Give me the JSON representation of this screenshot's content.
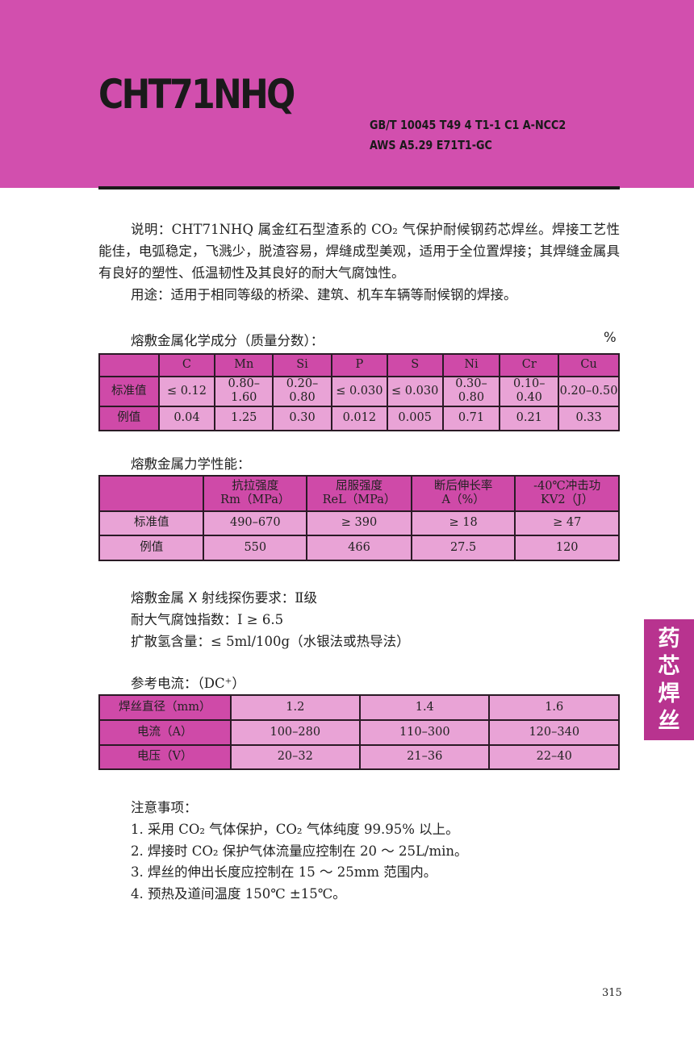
{
  "header": {
    "title": "CHT71NHQ",
    "standards": [
      "GB/T 10045 T49 4 T1-1 C1 A-NCC2",
      "AWS A5.29 E71T1-GC"
    ]
  },
  "description": {
    "label": "说明：",
    "text": "CHT71NHQ 属金红石型渣系的 CO₂ 气保护耐候钢药芯焊丝。焊接工艺性能佳，电弧稳定，飞溅少，脱渣容易，焊缝成型美观，适用于全位置焊接；其焊缝金属具有良好的塑性、低温韧性及其良好的耐大气腐蚀性。",
    "usage_label": "用途：",
    "usage": "适用于相同等级的桥梁、建筑、机车车辆等耐候钢的焊接。"
  },
  "chem": {
    "heading": "熔敷金属化学成分（质量分数）：",
    "unit": "%",
    "headers": [
      "",
      "C",
      "Mn",
      "Si",
      "P",
      "S",
      "Ni",
      "Cr",
      "Cu"
    ],
    "rows": [
      [
        "标准值",
        "≤ 0.12",
        "0.80–1.60",
        "0.20–0.80",
        "≤ 0.030",
        "≤ 0.030",
        "0.30–0.80",
        "0.10–0.40",
        "0.20–0.50"
      ],
      [
        "例值",
        "0.04",
        "1.25",
        "0.30",
        "0.012",
        "0.005",
        "0.71",
        "0.21",
        "0.33"
      ]
    ]
  },
  "mech": {
    "heading": "熔敷金属力学性能：",
    "headers": [
      [
        "",
        ""
      ],
      [
        "抗拉强度",
        "Rm（MPa）"
      ],
      [
        "屈服强度",
        "ReL（MPa）"
      ],
      [
        "断后伸长率",
        "A（%）"
      ],
      [
        "-40℃冲击功",
        "KV2（J）"
      ]
    ],
    "rows": [
      [
        "标准值",
        "490–670",
        "≥ 390",
        "≥ 18",
        "≥ 47"
      ],
      [
        "例值",
        "550",
        "466",
        "27.5",
        "120"
      ]
    ]
  },
  "req": [
    {
      "label": "熔敷金属 X 射线探伤要求：",
      "value": "Ⅱ级"
    },
    {
      "label": "耐大气腐蚀指数：",
      "value": "I ≥ 6.5"
    },
    {
      "label": "扩散氢含量：",
      "value": "≤ 5ml/100g（水银法或热导法）"
    }
  ],
  "current": {
    "heading": "参考电流：",
    "dc": "（DC⁺）",
    "rows": [
      [
        "焊丝直径（mm）",
        "1.2",
        "1.4",
        "1.6"
      ],
      [
        "电流（A）",
        "100–280",
        "110–300",
        "120–340"
      ],
      [
        "电压（V）",
        "20–32",
        "21–36",
        "22–40"
      ]
    ]
  },
  "notes": {
    "heading": "注意事项：",
    "items": [
      "1. 采用 CO₂ 气体保护，CO₂ 气体纯度 99.95% 以上。",
      "2. 焊接时 CO₂ 保护气体流量应控制在 20 ～ 25L/min。",
      "3. 焊丝的伸出长度应控制在 15 ～ 25mm 范围内。",
      "4. 预热及道间温度 150℃ ±15℃。"
    ]
  },
  "side_tab": "药芯焊丝",
  "page_number": "315",
  "colors": {
    "band": "#d24fae",
    "cell_dark": "#cf4aa8",
    "cell_light": "#e9a3d6",
    "side_tab": "#b8338f"
  }
}
